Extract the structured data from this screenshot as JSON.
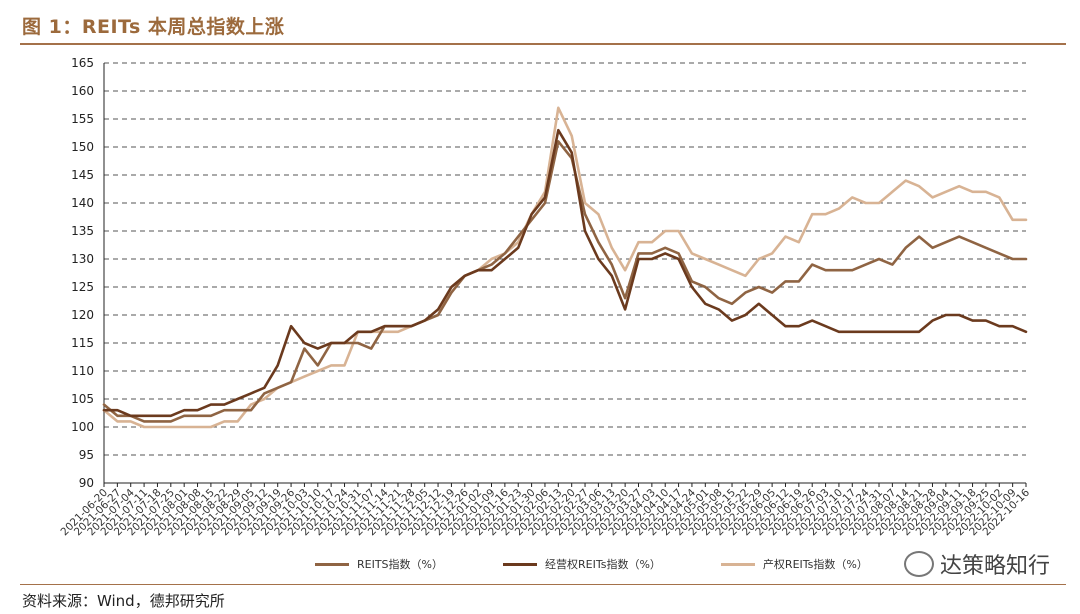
{
  "header": {
    "title": "图 1：REITs 本周总指数上涨"
  },
  "footer": {
    "source": "资料来源：Wind，德邦研究所"
  },
  "watermark": {
    "text": "达策略知行",
    "icon": "wechat-icon"
  },
  "colors": {
    "reits": "#8f6443",
    "operating": "#6b3a1e",
    "property": "#d8b394",
    "axis": "#222222"
  },
  "chart_data": {
    "type": "line",
    "title": "",
    "xlabel": "",
    "ylabel": "",
    "ylim": [
      90,
      165
    ],
    "yticks": [
      90,
      95,
      100,
      105,
      110,
      115,
      120,
      125,
      130,
      135,
      140,
      145,
      150,
      155,
      160,
      165
    ],
    "grid": "horizontal-dashed",
    "legend_position": "bottom",
    "x_tick_labels": [
      "2021-06-20",
      "2021-06-27",
      "2021-07-04",
      "2021-07-11",
      "2021-07-18",
      "2021-07-25",
      "2021-08-01",
      "2021-08-08",
      "2021-08-15",
      "2021-08-22",
      "2021-08-29",
      "2021-09-05",
      "2021-09-12",
      "2021-09-19",
      "2021-09-26",
      "2021-10-03",
      "2021-10-10",
      "2021-10-17",
      "2021-10-24",
      "2021-10-31",
      "2021-11-07",
      "2021-11-14",
      "2021-11-21",
      "2021-11-28",
      "2021-12-05",
      "2021-12-12",
      "2021-12-19",
      "2021-12-26",
      "2022-01-02",
      "2022-01-09",
      "2022-01-16",
      "2022-01-23",
      "2022-01-30",
      "2022-02-06",
      "2022-02-13",
      "2022-02-20",
      "2022-02-27",
      "2022-03-06",
      "2022-03-13",
      "2022-03-20",
      "2022-03-27",
      "2022-04-03",
      "2022-04-10",
      "2022-04-17",
      "2022-04-24",
      "2022-05-01",
      "2022-05-08",
      "2022-05-15",
      "2022-05-22",
      "2022-05-29",
      "2022-06-05",
      "2022-06-12",
      "2022-06-19",
      "2022-06-26",
      "2022-07-03",
      "2022-07-10",
      "2022-07-17",
      "2022-07-24",
      "2022-07-31",
      "2022-08-07",
      "2022-08-14",
      "2022-08-21",
      "2022-08-28",
      "2022-09-04",
      "2022-09-11",
      "2022-09-18",
      "2022-09-25",
      "2022-10-02",
      "2022-10-09",
      "2022-10-16"
    ],
    "series": [
      {
        "name": "REITS指数（%）",
        "color": "#8f6443",
        "values": [
          104,
          102,
          102,
          101,
          101,
          101,
          102,
          102,
          102,
          103,
          103,
          103,
          106,
          107,
          108,
          114,
          111,
          115,
          115,
          115,
          114,
          118,
          118,
          118,
          119,
          120,
          124,
          127,
          128,
          129,
          131,
          134,
          137,
          140,
          151,
          148,
          138,
          133,
          129,
          123,
          131,
          131,
          132,
          131,
          126,
          125,
          123,
          122,
          124,
          125,
          124,
          126,
          126,
          129,
          128,
          128,
          128,
          129,
          130,
          129,
          132,
          134,
          132,
          133,
          134,
          133,
          132,
          131,
          130,
          130
        ]
      },
      {
        "name": "经营权REITs指数（%）",
        "color": "#6b3a1e",
        "values": [
          103,
          103,
          102,
          102,
          102,
          102,
          103,
          103,
          104,
          104,
          105,
          106,
          107,
          111,
          118,
          115,
          114,
          115,
          115,
          117,
          117,
          118,
          118,
          118,
          119,
          121,
          125,
          127,
          128,
          128,
          130,
          132,
          138,
          141,
          153,
          149,
          135,
          130,
          127,
          121,
          130,
          130,
          131,
          130,
          125,
          122,
          121,
          119,
          120,
          122,
          120,
          118,
          118,
          119,
          118,
          117,
          117,
          117,
          117,
          117,
          117,
          117,
          119,
          120,
          120,
          119,
          119,
          118,
          118,
          117
        ]
      },
      {
        "name": "产权REITs指数（%）",
        "color": "#d8b394",
        "values": [
          103,
          101,
          101,
          100,
          100,
          100,
          100,
          100,
          100,
          101,
          101,
          104,
          105,
          107,
          108,
          109,
          110,
          111,
          111,
          117,
          117,
          117,
          117,
          118,
          119,
          120,
          125,
          127,
          128,
          130,
          131,
          133,
          138,
          142,
          157,
          152,
          140,
          138,
          132,
          128,
          133,
          133,
          135,
          135,
          131,
          130,
          129,
          128,
          127,
          130,
          131,
          134,
          133,
          138,
          138,
          139,
          141,
          140,
          140,
          142,
          144,
          143,
          141,
          142,
          143,
          142,
          142,
          141,
          137,
          137
        ]
      }
    ]
  }
}
